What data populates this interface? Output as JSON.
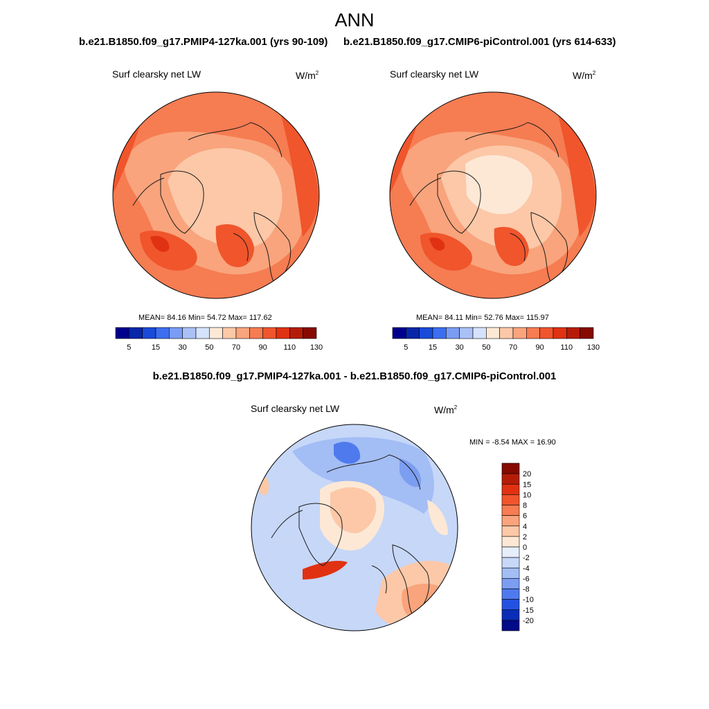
{
  "page": {
    "title": "ANN",
    "left_case": "b.e21.B1850.f09_g17.PMIP4-127ka.001 (yrs 90-109)",
    "right_case": "b.e21.B1850.f09_g17.CMIP6-piControl.001 (yrs 614-633)",
    "diff_title": "b.e21.B1850.f09_g17.PMIP4-127ka.001 - b.e21.B1850.f09_g17.CMIP6-piControl.001"
  },
  "chart_data": [
    {
      "type": "heatmap",
      "projection": "north-polar-stereographic",
      "variable": "Surf clearsky net LW",
      "units": "W/m",
      "units_sup": "2",
      "stats_text": "MEAN=  84.16  Min=  54.72  Max= 117.62",
      "stats": {
        "mean": 84.16,
        "min": 54.72,
        "max": 117.62
      },
      "colorbar_ticks": [
        "5",
        "15",
        "30",
        "50",
        "70",
        "90",
        "110",
        "130"
      ],
      "colorbar_levels": [
        5,
        10,
        15,
        20,
        30,
        40,
        50,
        60,
        70,
        80,
        90,
        100,
        110,
        120,
        130
      ],
      "colors": [
        "#00008c",
        "#0826a8",
        "#1a4ad8",
        "#3d6ef0",
        "#7b9cf4",
        "#a9c1f7",
        "#d4e2fb",
        "#fde8d6",
        "#fcc8a8",
        "#f9a47c",
        "#f67c52",
        "#f0552c",
        "#e03212",
        "#b51c08",
        "#860a00"
      ]
    },
    {
      "type": "heatmap",
      "projection": "north-polar-stereographic",
      "variable": "Surf clearsky net LW",
      "units": "W/m",
      "units_sup": "2",
      "stats_text": "MEAN=  84.11  Min=  52.76  Max= 115.97",
      "stats": {
        "mean": 84.11,
        "min": 52.76,
        "max": 115.97
      },
      "colorbar_ticks": [
        "5",
        "15",
        "30",
        "50",
        "70",
        "90",
        "110",
        "130"
      ],
      "colorbar_levels": [
        5,
        10,
        15,
        20,
        30,
        40,
        50,
        60,
        70,
        80,
        90,
        100,
        110,
        120,
        130
      ],
      "colors": [
        "#00008c",
        "#0826a8",
        "#1a4ad8",
        "#3d6ef0",
        "#7b9cf4",
        "#a9c1f7",
        "#d4e2fb",
        "#fde8d6",
        "#fcc8a8",
        "#f9a47c",
        "#f67c52",
        "#f0552c",
        "#e03212",
        "#b51c08",
        "#860a00"
      ]
    },
    {
      "type": "heatmap",
      "projection": "north-polar-stereographic",
      "variable": "Surf clearsky net LW",
      "units": "W/m",
      "units_sup": "2",
      "stats_text": "MIN =  -8.54 MAX =  16.90",
      "stats": {
        "min": -8.54,
        "max": 16.9
      },
      "colorbar_ticks": [
        "20",
        "15",
        "10",
        "8",
        "6",
        "4",
        "2",
        "0",
        "-2",
        "-4",
        "-6",
        "-8",
        "-10",
        "-15",
        "-20"
      ],
      "colors": [
        "#860a00",
        "#b51c08",
        "#e03212",
        "#f0552c",
        "#f67c52",
        "#f9a47c",
        "#fcc8a8",
        "#fde8d6",
        "#e6eefc",
        "#c6d7f8",
        "#a3bdf5",
        "#7c9ef1",
        "#4f7aee",
        "#2452e0",
        "#0a2db8",
        "#000b88"
      ]
    }
  ]
}
